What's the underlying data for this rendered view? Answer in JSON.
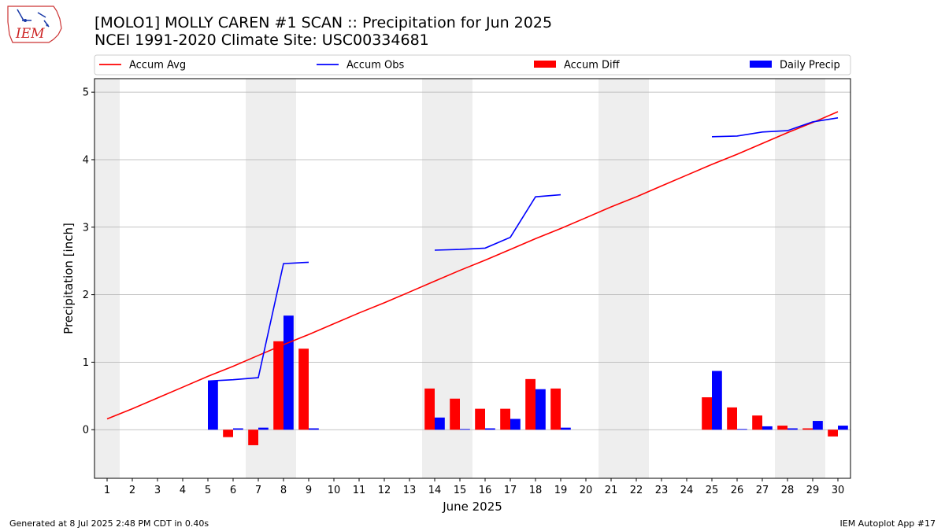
{
  "header": {
    "title_line1": "[MOLO1] MOLLY CAREN #1 SCAN :: Precipitation for Jun 2025",
    "title_line2": "NCEI 1991-2020 Climate Site: USC00334681",
    "logo_text": "IEM"
  },
  "footer": {
    "generated": "Generated at 8 Jul 2025 2:48 PM CDT in 0.40s",
    "app": "IEM Autoplot App #17"
  },
  "colors": {
    "avg": "#ff0000",
    "obs": "#0000ff",
    "diff": "#ff0000",
    "daily": "#0000ff",
    "weekend_shade": "#eeeeee",
    "grid": "#b0b0b0"
  },
  "chart_data": {
    "type": "bar",
    "xlabel": "June 2025",
    "ylabel": "Precipitation [inch]",
    "ylim": [
      -0.72,
      5.2
    ],
    "xlim": [
      0.5,
      30.5
    ],
    "yticks": [
      0,
      1,
      2,
      3,
      4,
      5
    ],
    "grid": "horizontal",
    "legend_placement": "top, above plot",
    "legend": [
      {
        "label": "Accum Avg",
        "kind": "line",
        "color": "#ff0000"
      },
      {
        "label": "Accum Obs",
        "kind": "line",
        "color": "#0000ff"
      },
      {
        "label": "Accum Diff",
        "kind": "bar",
        "color": "#ff0000"
      },
      {
        "label": "Daily Precip",
        "kind": "bar",
        "color": "#0000ff"
      }
    ],
    "days": [
      1,
      2,
      3,
      4,
      5,
      6,
      7,
      8,
      9,
      10,
      11,
      12,
      13,
      14,
      15,
      16,
      17,
      18,
      19,
      20,
      21,
      22,
      23,
      24,
      25,
      26,
      27,
      28,
      29,
      30
    ],
    "shaded_weekends": [
      [
        0.5,
        1.5
      ],
      [
        6.5,
        8.5
      ],
      [
        13.5,
        15.5
      ],
      [
        20.5,
        22.5
      ],
      [
        27.5,
        29.5
      ]
    ],
    "series": [
      {
        "name": "Accum Avg",
        "type": "line",
        "values": [
          0.16,
          0.31,
          0.47,
          0.63,
          0.79,
          0.94,
          1.1,
          1.26,
          1.41,
          1.57,
          1.73,
          1.88,
          2.04,
          2.2,
          2.36,
          2.51,
          2.67,
          2.83,
          2.98,
          3.14,
          3.3,
          3.45,
          3.61,
          3.77,
          3.93,
          4.08,
          4.24,
          4.4,
          4.55,
          4.71
        ]
      },
      {
        "name": "Accum Obs",
        "type": "line",
        "values": [
          null,
          null,
          null,
          null,
          0.72,
          0.74,
          0.77,
          2.46,
          2.48,
          null,
          null,
          null,
          null,
          2.66,
          2.67,
          2.69,
          2.85,
          3.45,
          3.48,
          null,
          null,
          null,
          null,
          null,
          4.34,
          4.35,
          4.41,
          4.43,
          4.56,
          4.62
        ]
      },
      {
        "name": "Accum Diff",
        "type": "bar",
        "values": [
          null,
          null,
          null,
          null,
          null,
          -0.11,
          -0.23,
          1.31,
          1.2,
          null,
          null,
          null,
          null,
          0.61,
          0.46,
          0.31,
          0.31,
          0.75,
          0.61,
          null,
          null,
          null,
          null,
          null,
          0.48,
          0.33,
          0.21,
          0.06,
          0.02,
          -0.1
        ]
      },
      {
        "name": "Daily Precip",
        "type": "bar",
        "values": [
          null,
          null,
          null,
          null,
          0.72,
          0.02,
          0.03,
          1.69,
          0.02,
          null,
          null,
          null,
          null,
          0.18,
          0.01,
          0.02,
          0.16,
          0.6,
          0.03,
          null,
          null,
          null,
          null,
          null,
          0.87,
          0.01,
          0.05,
          0.02,
          0.13,
          0.06
        ]
      }
    ]
  }
}
